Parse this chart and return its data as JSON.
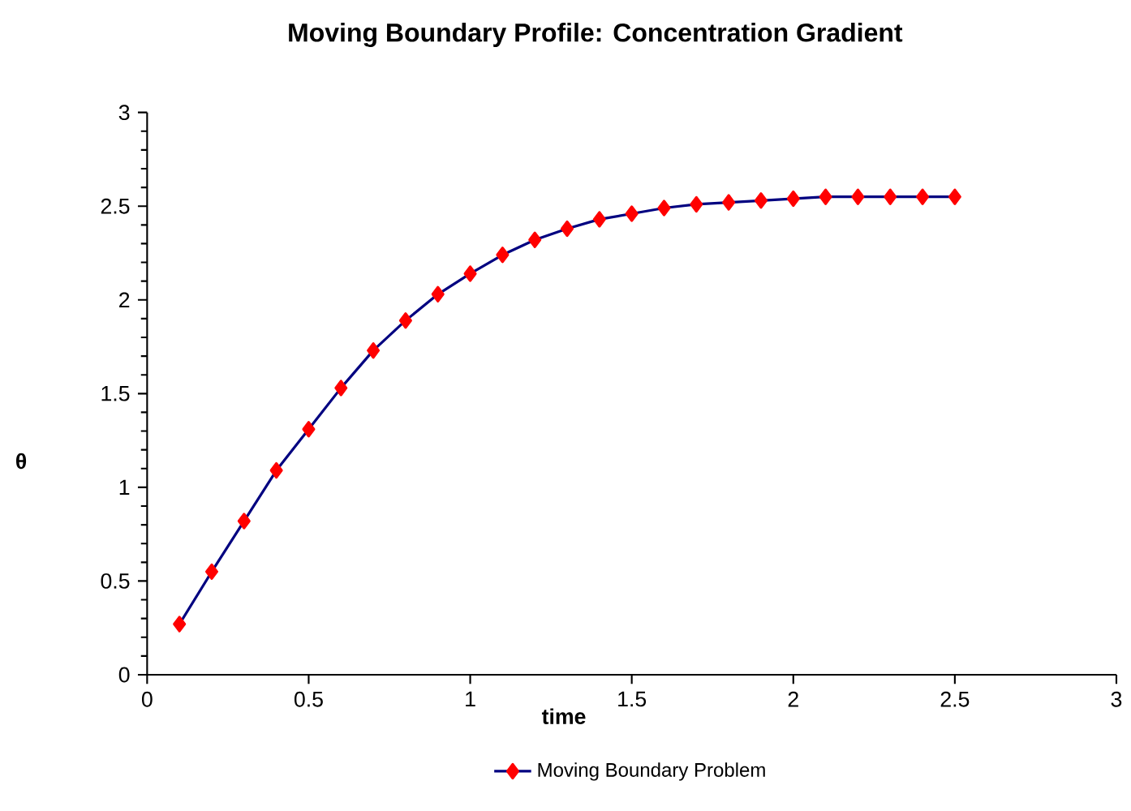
{
  "chart_data": {
    "type": "line",
    "title": "Moving Boundary Profile: Concentration Gradient",
    "xlabel": "time",
    "ylabel": "θ",
    "x": [
      0.1,
      0.2,
      0.3,
      0.4,
      0.5,
      0.6,
      0.7,
      0.8,
      0.9,
      1.0,
      1.1,
      1.2,
      1.3,
      1.4,
      1.5,
      1.6,
      1.7,
      1.8,
      1.9,
      2.0,
      2.1,
      2.2,
      2.3,
      2.4,
      2.5
    ],
    "series": [
      {
        "name": "Moving Boundary Problem",
        "color": "#000080",
        "colors": [
          "#ff0000",
          "#ff0000",
          "#ff0000",
          "#ff0000",
          "#ff0000",
          "#ff0000",
          "#ff0000",
          "#ff0000",
          "#ff0000",
          "#ff0000",
          "#ff0000",
          "#ff0000",
          "#ff0000",
          "#ff0000",
          "#ff0000",
          "#ff0000",
          "#ff0000",
          "#ff0000",
          "#ff0000",
          "#ff0000",
          "#ff0000",
          "#ff0000",
          "#ff0000",
          "#ff0000",
          "#ff0000"
        ],
        "values": [
          0.27,
          0.55,
          0.82,
          1.09,
          1.31,
          1.53,
          1.73,
          1.89,
          2.03,
          2.14,
          2.24,
          2.32,
          2.38,
          2.43,
          2.46,
          2.49,
          2.51,
          2.52,
          2.53,
          2.54,
          2.55,
          2.55,
          2.55,
          2.55,
          2.55
        ]
      }
    ],
    "xlim": [
      0,
      3
    ],
    "ylim": [
      0,
      3
    ],
    "xticks": [
      0,
      0.5,
      1,
      1.5,
      2,
      2.5,
      3
    ],
    "yticks": [
      0,
      0.5,
      1,
      1.5,
      2,
      2.5,
      3
    ],
    "grid": false,
    "legend": "bottom",
    "marker": "diamond",
    "line_style": "solid"
  }
}
